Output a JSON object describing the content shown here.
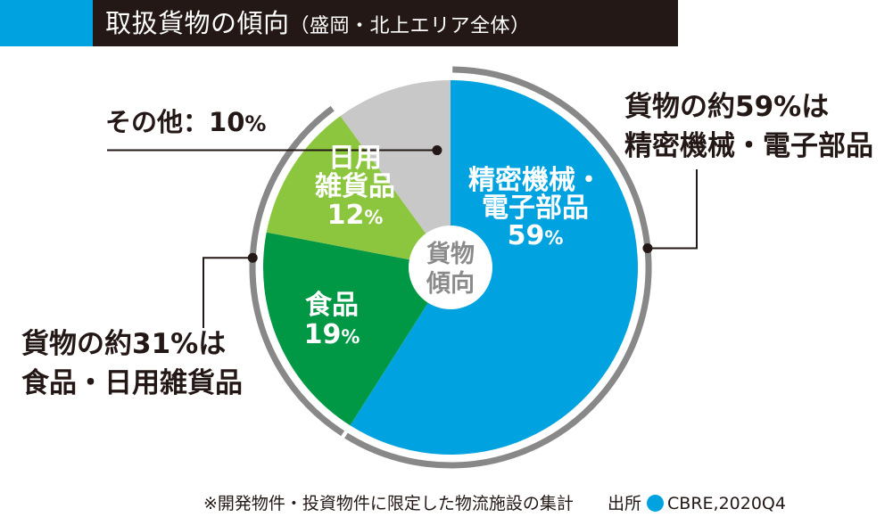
{
  "header": {
    "title": "取扱貨物の傾向",
    "subtitle": "（盛岡・北上エリア全体）"
  },
  "chart_data": {
    "type": "pie",
    "center_label": [
      "貨物",
      "傾向"
    ],
    "slices": [
      {
        "name_lines": [
          "精密機械・",
          "電子部品"
        ],
        "value": 59,
        "color": "#00a3df"
      },
      {
        "name_lines": [
          "食品"
        ],
        "value": 19,
        "color": "#009844"
      },
      {
        "name_lines": [
          "日用",
          "雑貨品"
        ],
        "value": 12,
        "color": "#8cc63f"
      },
      {
        "name_lines": [
          "その他："
        ],
        "value": 10,
        "color": "#c8c8c8"
      }
    ],
    "value_suffix": "%",
    "callouts": [
      {
        "lines": [
          "貨物の約59%は",
          "精密機械・電子部品"
        ]
      },
      {
        "lines": [
          "貨物の約31%は",
          "食品・日用雑貨品"
        ]
      }
    ]
  },
  "footer": {
    "note": "※開発物件・投資物件に限定した物流施設の集計",
    "source_label": "出所",
    "source": "CBRE,2020Q4"
  }
}
